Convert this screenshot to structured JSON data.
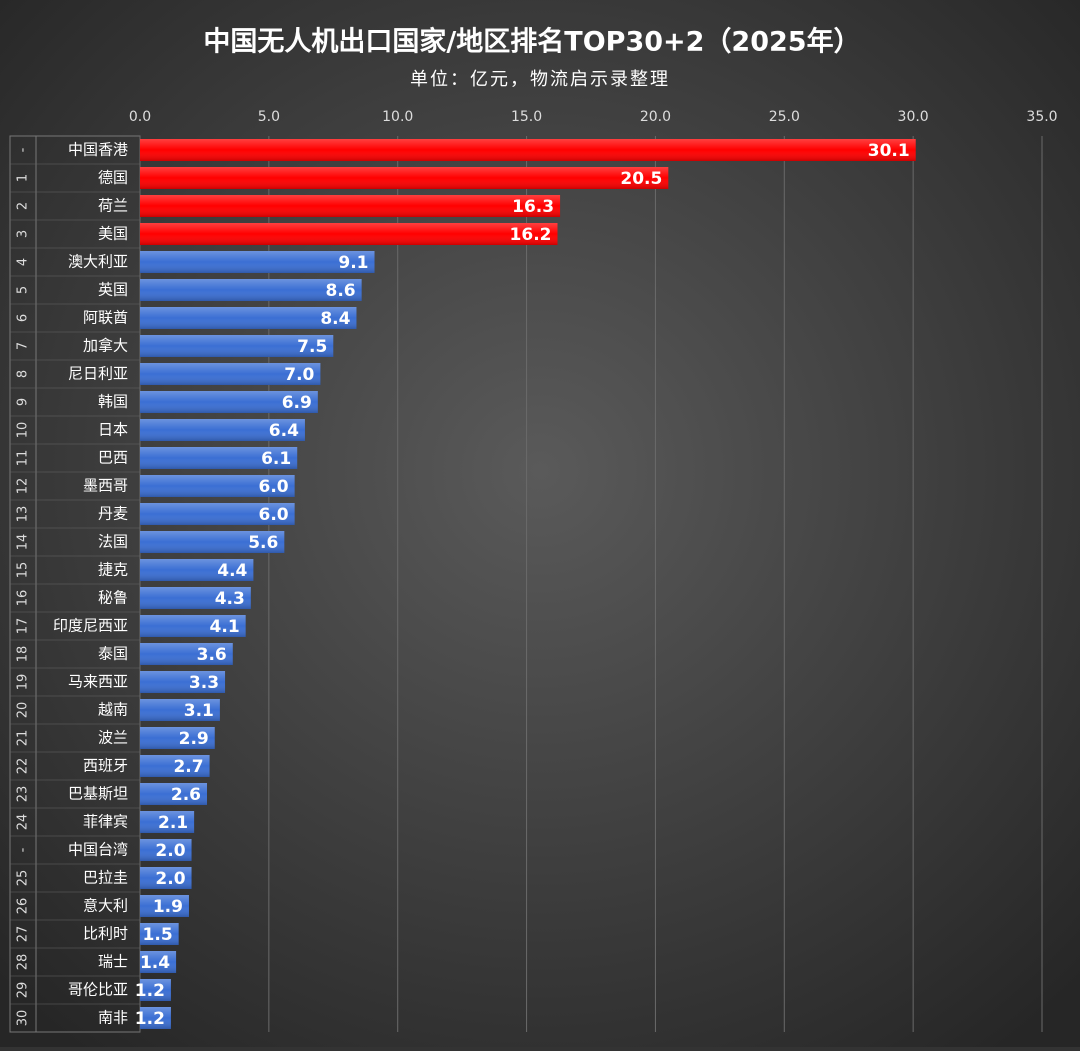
{
  "chart_data": {
    "type": "bar",
    "orientation": "horizontal",
    "title": "中国无人机出口国家/地区排名TOP30+2（2025年）",
    "subtitle": "单位：亿元，物流启示录整理",
    "ranks": [
      "-",
      "1",
      "2",
      "3",
      "4",
      "5",
      "6",
      "7",
      "8",
      "9",
      "10",
      "11",
      "12",
      "13",
      "14",
      "15",
      "16",
      "17",
      "18",
      "19",
      "20",
      "21",
      "22",
      "23",
      "24",
      "-",
      "25",
      "26",
      "27",
      "28",
      "29",
      "30"
    ],
    "categories": [
      "中国香港",
      "德国",
      "荷兰",
      "美国",
      "澳大利亚",
      "英国",
      "阿联酋",
      "加拿大",
      "尼日利亚",
      "韩国",
      "日本",
      "巴西",
      "墨西哥",
      "丹麦",
      "法国",
      "捷克",
      "秘鲁",
      "印度尼西亚",
      "泰国",
      "马来西亚",
      "越南",
      "波兰",
      "西班牙",
      "巴基斯坦",
      "菲律宾",
      "中国台湾",
      "巴拉圭",
      "意大利",
      "比利时",
      "瑞士",
      "哥伦比亚",
      "南非"
    ],
    "values": [
      30.1,
      20.5,
      16.3,
      16.2,
      9.1,
      8.6,
      8.4,
      7.5,
      7,
      6.9,
      6.4,
      6.1,
      6,
      6,
      5.6,
      4.4,
      4.3,
      4.1,
      3.6,
      3.3,
      3.1,
      2.9,
      2.7,
      2.6,
      2.1,
      2,
      2,
      1.9,
      1.5,
      1.4,
      1.2,
      1.2
    ],
    "value_labels": [
      "30.1",
      "20.5",
      "16.3",
      "16.2",
      "9.1",
      "8.6",
      "8.4",
      "7.5",
      "7.0",
      "6.9",
      "6.4",
      "6.1",
      "6.0",
      "6.0",
      "5.6",
      "4.4",
      "4.3",
      "4.1",
      "3.6",
      "3.3",
      "3.1",
      "2.9",
      "2.7",
      "2.6",
      "2.1",
      "2.0",
      "2.0",
      "1.9",
      "1.5",
      "1.4",
      "1.2",
      "1.2"
    ],
    "colors": [
      "#ff0000",
      "#ff0000",
      "#ff0000",
      "#ff0000",
      "#3b6fd4",
      "#3b6fd4",
      "#3b6fd4",
      "#3b6fd4",
      "#3b6fd4",
      "#3b6fd4",
      "#3b6fd4",
      "#3b6fd4",
      "#3b6fd4",
      "#3b6fd4",
      "#3b6fd4",
      "#3b6fd4",
      "#3b6fd4",
      "#3b6fd4",
      "#3b6fd4",
      "#3b6fd4",
      "#3b6fd4",
      "#3b6fd4",
      "#3b6fd4",
      "#3b6fd4",
      "#3b6fd4",
      "#3b6fd4",
      "#3b6fd4",
      "#3b6fd4",
      "#3b6fd4",
      "#3b6fd4",
      "#3b6fd4",
      "#3b6fd4"
    ],
    "xlim": [
      0,
      35
    ],
    "xticks": [
      {
        "value": 0,
        "label": "0.0"
      },
      {
        "value": 5,
        "label": "5.0"
      },
      {
        "value": 10,
        "label": "10.0"
      },
      {
        "value": 15,
        "label": "15.0"
      },
      {
        "value": 20,
        "label": "20.0"
      },
      {
        "value": 25,
        "label": "25.0"
      },
      {
        "value": 30,
        "label": "30.0"
      },
      {
        "value": 35,
        "label": "35.0"
      }
    ],
    "grid": true
  }
}
